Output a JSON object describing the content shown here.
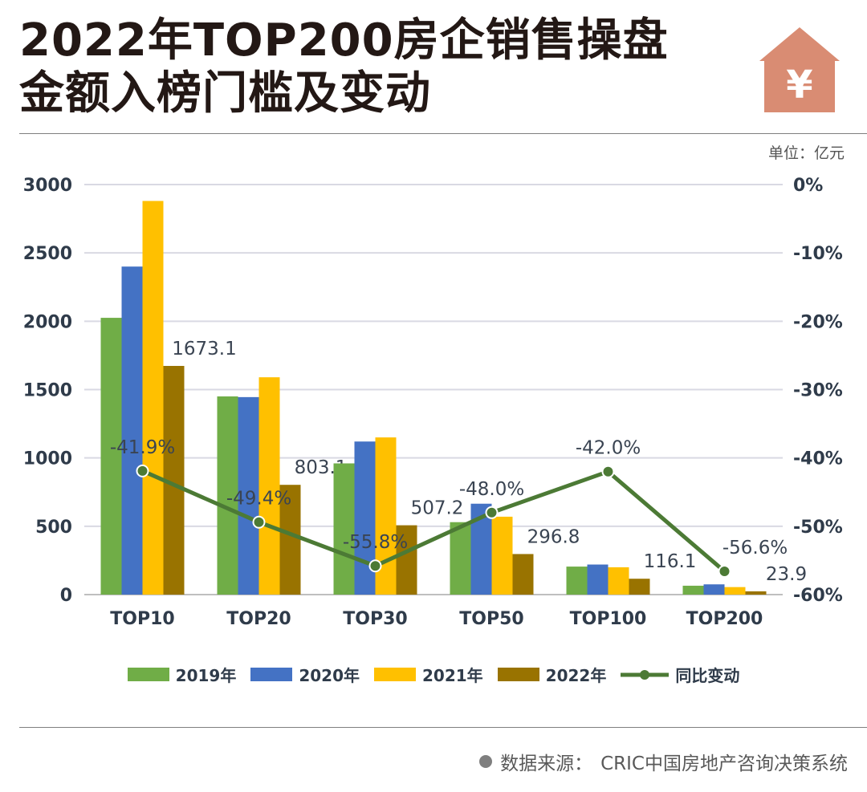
{
  "header": {
    "title_line1": "2022年TOP200房企销售操盘",
    "title_line2": "金额入榜门槛及变动",
    "icon": "house-yuan-icon",
    "icon_symbol": "¥",
    "icon_color": "#d98c73"
  },
  "unit_label": "单位：亿元",
  "source": {
    "label": "数据来源：",
    "text": "CRIC中国房地产咨询决策系统"
  },
  "chart_data": {
    "type": "bar",
    "title": "",
    "categories": [
      "TOP10",
      "TOP20",
      "TOP30",
      "TOP50",
      "TOP100",
      "TOP200"
    ],
    "series": [
      {
        "name": "2019年",
        "color": "#70ad47",
        "values": [
          2025,
          1450,
          960,
          530,
          205,
          65
        ]
      },
      {
        "name": "2020年",
        "color": "#4472c4",
        "values": [
          2400,
          1445,
          1120,
          665,
          220,
          75
        ]
      },
      {
        "name": "2021年",
        "color": "#ffc000",
        "values": [
          2880,
          1590,
          1150,
          570,
          200,
          55
        ]
      },
      {
        "name": "2022年",
        "color": "#997300",
        "values": [
          1673.1,
          803.1,
          507.2,
          296.8,
          116.1,
          23.9
        ],
        "labels": [
          "1673.1",
          "803.1",
          "507.2",
          "296.8",
          "116.1",
          "23.9"
        ]
      }
    ],
    "line_series": {
      "name": "同比变动",
      "color": "#4c7a35",
      "values": [
        -41.9,
        -49.4,
        -55.8,
        -48.0,
        -42.0,
        -56.6
      ],
      "labels": [
        "-41.9%",
        "-49.4%",
        "-55.8%",
        "-48.0%",
        "-42.0%",
        "-56.6%"
      ]
    },
    "y_left": {
      "min": 0,
      "max": 3000,
      "ticks": [
        0,
        500,
        1000,
        1500,
        2000,
        2500,
        3000
      ]
    },
    "y_right": {
      "min": -60,
      "max": 0,
      "ticks": [
        0,
        -10,
        -20,
        -30,
        -40,
        -50,
        -60
      ],
      "tick_labels": [
        "0%",
        "-10%",
        "-20%",
        "-30%",
        "-40%",
        "-50%",
        "-60%"
      ]
    },
    "grid": true,
    "legend_position": "bottom"
  }
}
